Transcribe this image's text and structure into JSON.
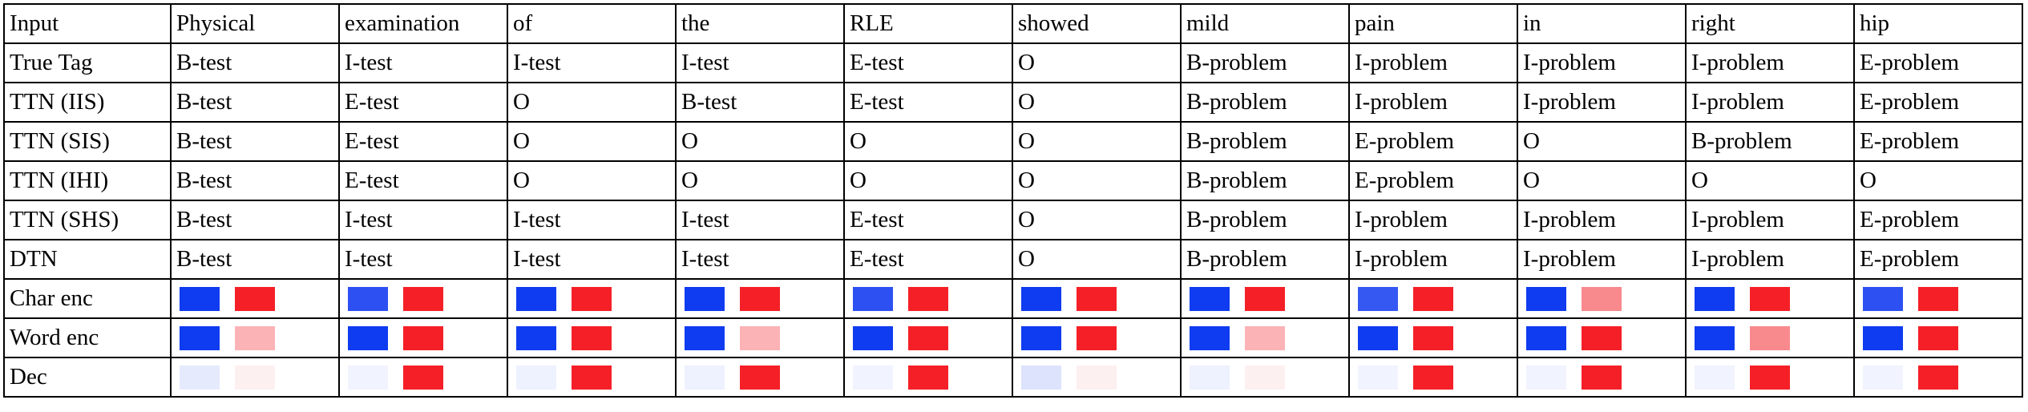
{
  "table": {
    "text_rows": [
      {
        "label": "Input",
        "cells": [
          "Physical",
          "examination",
          "of",
          "the",
          "RLE",
          "showed",
          "mild",
          "pain",
          "in",
          "right",
          "hip"
        ]
      },
      {
        "label": "True Tag",
        "cells": [
          "B-test",
          "I-test",
          "I-test",
          "I-test",
          "E-test",
          "O",
          "B-problem",
          "I-problem",
          "I-problem",
          "I-problem",
          "E-problem"
        ]
      },
      {
        "label": "TTN (IIS)",
        "cells": [
          "B-test",
          "E-test",
          "O",
          "B-test",
          "E-test",
          "O",
          "B-problem",
          "I-problem",
          "I-problem",
          "I-problem",
          "E-problem"
        ]
      },
      {
        "label": "TTN (SIS)",
        "cells": [
          "B-test",
          "E-test",
          "O",
          "O",
          "O",
          "O",
          "B-problem",
          "E-problem",
          "O",
          "B-problem",
          "E-problem"
        ]
      },
      {
        "label": "TTN (IHI)",
        "cells": [
          "B-test",
          "E-test",
          "O",
          "O",
          "O",
          "O",
          "B-problem",
          "E-problem",
          "O",
          "O",
          "O"
        ]
      },
      {
        "label": "TTN (SHS)",
        "cells": [
          "B-test",
          "I-test",
          "I-test",
          "I-test",
          "E-test",
          "O",
          "B-problem",
          "I-problem",
          "I-problem",
          "I-problem",
          "E-problem"
        ]
      },
      {
        "label": "DTN",
        "cells": [
          "B-test",
          "I-test",
          "I-test",
          "I-test",
          "E-test",
          "O",
          "B-problem",
          "I-problem",
          "I-problem",
          "I-problem",
          "E-problem"
        ]
      }
    ],
    "swatch_rows": [
      {
        "label": "Char enc",
        "cells": [
          [
            "#0f3cf0",
            "#f52027"
          ],
          [
            "#2d50f2",
            "#f52027"
          ],
          [
            "#0f3cf0",
            "#f52027"
          ],
          [
            "#0f3cf0",
            "#f52027"
          ],
          [
            "#2d50f2",
            "#f52027"
          ],
          [
            "#0f3cf0",
            "#f52027"
          ],
          [
            "#0f3cf0",
            "#f52027"
          ],
          [
            "#3558f3",
            "#f52027"
          ],
          [
            "#0f3cf0",
            "#f88a8e"
          ],
          [
            "#0f3cf0",
            "#f52027"
          ],
          [
            "#2d50f2",
            "#f52027"
          ]
        ]
      },
      {
        "label": "Word enc",
        "cells": [
          [
            "#0f3cf0",
            "#fbb3b5"
          ],
          [
            "#0f3cf0",
            "#f52027"
          ],
          [
            "#0f3cf0",
            "#f52027"
          ],
          [
            "#0f3cf0",
            "#fbb3b5"
          ],
          [
            "#0f3cf0",
            "#f52027"
          ],
          [
            "#0f3cf0",
            "#f52027"
          ],
          [
            "#0f3cf0",
            "#fbb3b5"
          ],
          [
            "#0f3cf0",
            "#f52027"
          ],
          [
            "#0f3cf0",
            "#f52027"
          ],
          [
            "#0f3cf0",
            "#f88a8e"
          ],
          [
            "#0f3cf0",
            "#f52027"
          ]
        ]
      },
      {
        "label": "Dec",
        "cells": [
          [
            "#e6eafd",
            "#fdf0f0"
          ],
          [
            "#f1f3fe",
            "#f52027"
          ],
          [
            "#eef1fe",
            "#f52027"
          ],
          [
            "#eef1fe",
            "#f52027"
          ],
          [
            "#f1f3fe",
            "#f52027"
          ],
          [
            "#dde3fc",
            "#fdf0f0"
          ],
          [
            "#eef1fe",
            "#fdf0f0"
          ],
          [
            "#f1f3fe",
            "#f52027"
          ],
          [
            "#f1f3fe",
            "#f52027"
          ],
          [
            "#f1f3fe",
            "#f52027"
          ],
          [
            "#f1f3fe",
            "#f52027"
          ]
        ]
      }
    ]
  }
}
